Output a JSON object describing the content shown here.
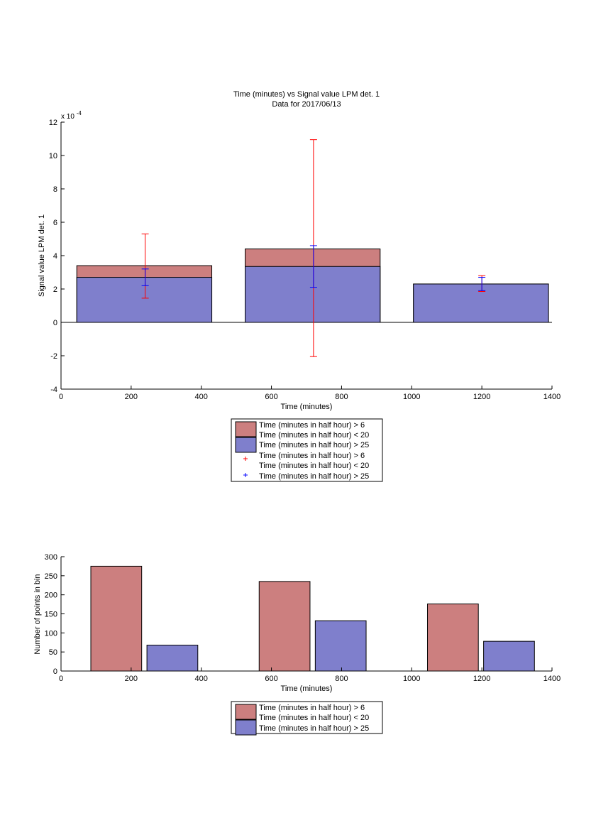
{
  "colors": {
    "series_red": "#cc7f7f",
    "series_blue": "#7f7fcc",
    "err_red": "#ff0000",
    "err_blue": "#0000ff",
    "axis": "#000000"
  },
  "chart_data": [
    {
      "type": "bar",
      "title": "Time (minutes) vs Signal value LPM det. 1",
      "subtitle": "Data for 2017/06/13",
      "xlabel": "Time (minutes)",
      "ylabel": "Signal value LPM det. 1",
      "y_exponent_label": "x 10",
      "y_exponent_power": "-4",
      "xlim": [
        0,
        1400
      ],
      "ylim": [
        -4,
        12
      ],
      "xticks": [
        "0",
        "200",
        "400",
        "600",
        "800",
        "1000",
        "1200",
        "1400"
      ],
      "yticks": [
        "-4",
        "-2",
        "0",
        "2",
        "4",
        "6",
        "8",
        "10",
        "12"
      ],
      "grid": false,
      "legend_position": "below",
      "bars": [
        {
          "x0": 45,
          "x1": 430,
          "red": 3.4,
          "blue": 2.7
        },
        {
          "x0": 525,
          "x1": 910,
          "red": 4.4,
          "blue": 3.35
        },
        {
          "x0": 1005,
          "x1": 1390,
          "red": 2.3,
          "blue": 2.3
        }
      ],
      "errorbars": [
        {
          "series": "red",
          "x": 240,
          "low": 1.45,
          "high": 5.3
        },
        {
          "series": "red",
          "x": 720,
          "low": -2.05,
          "high": 10.95
        },
        {
          "series": "red",
          "x": 1200,
          "low": 1.85,
          "high": 2.8
        },
        {
          "series": "blue",
          "x": 240,
          "low": 2.2,
          "high": 3.2
        },
        {
          "series": "blue",
          "x": 720,
          "low": 2.1,
          "high": 4.6
        },
        {
          "series": "blue",
          "x": 1200,
          "low": 1.9,
          "high": 2.7
        }
      ],
      "legend": [
        "Time (minutes in half hour) > 6",
        "Time (minutes in half hour) < 20",
        "Time (minutes in half hour) > 25",
        "Time (minutes in half hour) > 6",
        "Time (minutes in half hour) < 20",
        "Time (minutes in half hour) > 25"
      ]
    },
    {
      "type": "bar",
      "xlabel": "Time (minutes)",
      "ylabel": "Number of points in bin",
      "xlim": [
        0,
        1400
      ],
      "ylim": [
        0,
        300
      ],
      "xticks": [
        "0",
        "200",
        "400",
        "600",
        "800",
        "1000",
        "1200",
        "1400"
      ],
      "yticks": [
        "0",
        "50",
        "100",
        "150",
        "200",
        "250",
        "300"
      ],
      "grid": false,
      "legend_position": "below",
      "bars": [
        {
          "series": "red",
          "x0": 85,
          "x1": 230,
          "value": 275
        },
        {
          "series": "blue",
          "x0": 245,
          "x1": 390,
          "value": 68
        },
        {
          "series": "red",
          "x0": 565,
          "x1": 710,
          "value": 235
        },
        {
          "series": "blue",
          "x0": 725,
          "x1": 870,
          "value": 132
        },
        {
          "series": "red",
          "x0": 1045,
          "x1": 1190,
          "value": 176
        },
        {
          "series": "blue",
          "x0": 1205,
          "x1": 1350,
          "value": 78
        }
      ],
      "legend": [
        "Time (minutes in half hour) > 6",
        "Time (minutes in half hour) < 20",
        "Time (minutes in half hour) > 25"
      ]
    }
  ]
}
